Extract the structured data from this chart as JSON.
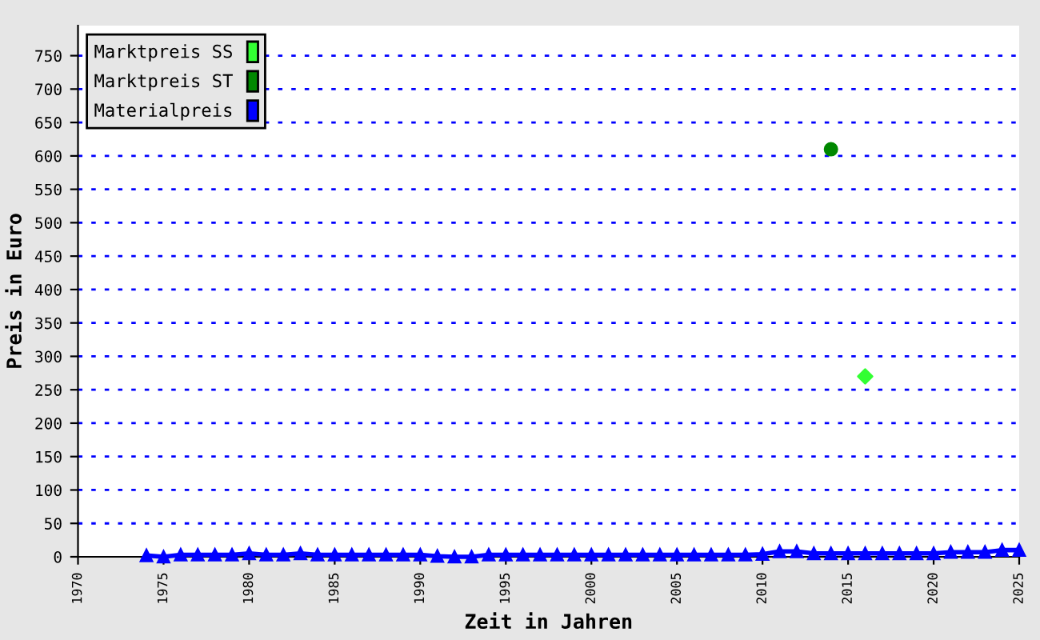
{
  "chart_data": {
    "type": "line",
    "xlabel": "Zeit in Jahren",
    "ylabel": "Preis in Euro",
    "xlim": [
      1970,
      2025
    ],
    "xticks": [
      1970,
      1975,
      1980,
      1985,
      1990,
      1995,
      2000,
      2005,
      2010,
      2015,
      2020,
      2025
    ],
    "ylim": [
      0,
      795
    ],
    "yticks": [
      0,
      50,
      100,
      150,
      200,
      250,
      300,
      350,
      400,
      450,
      500,
      550,
      600,
      650,
      700,
      750
    ],
    "grid": "y",
    "legend": "top left",
    "series": [
      {
        "name": "Marktpreis SS",
        "type": "scatter",
        "marker": "diamond",
        "color": "#33ff33",
        "x": [
          2016
        ],
        "values": [
          270
        ]
      },
      {
        "name": "Marktpreis ST",
        "type": "scatter",
        "marker": "circle",
        "color": "#008800",
        "x": [
          2014
        ],
        "values": [
          610
        ]
      },
      {
        "name": "Materialpreis",
        "marker": "triangle",
        "color": "#0000ff",
        "x": [
          1974,
          1975,
          1976,
          1977,
          1978,
          1979,
          1980,
          1981,
          1982,
          1983,
          1984,
          1985,
          1986,
          1987,
          1988,
          1989,
          1990,
          1991,
          1992,
          1993,
          1994,
          1995,
          1996,
          1997,
          1998,
          1999,
          2000,
          2001,
          2002,
          2003,
          2004,
          2005,
          2006,
          2007,
          2008,
          2009,
          2010,
          2011,
          2012,
          2013,
          2014,
          2015,
          2016,
          2017,
          2018,
          2019,
          2020,
          2021,
          2022,
          2023,
          2024,
          2025
        ],
        "values": [
          2,
          0,
          3,
          3,
          3,
          3,
          5,
          3,
          3,
          5,
          3,
          3,
          3,
          3,
          3,
          3,
          3,
          1,
          0,
          0,
          3,
          3,
          3,
          3,
          3,
          3,
          3,
          3,
          3,
          3,
          3,
          3,
          3,
          3,
          3,
          3,
          4,
          8,
          8,
          5,
          5,
          5,
          5,
          5,
          5,
          5,
          5,
          7,
          7,
          7,
          10,
          10
        ]
      }
    ]
  }
}
